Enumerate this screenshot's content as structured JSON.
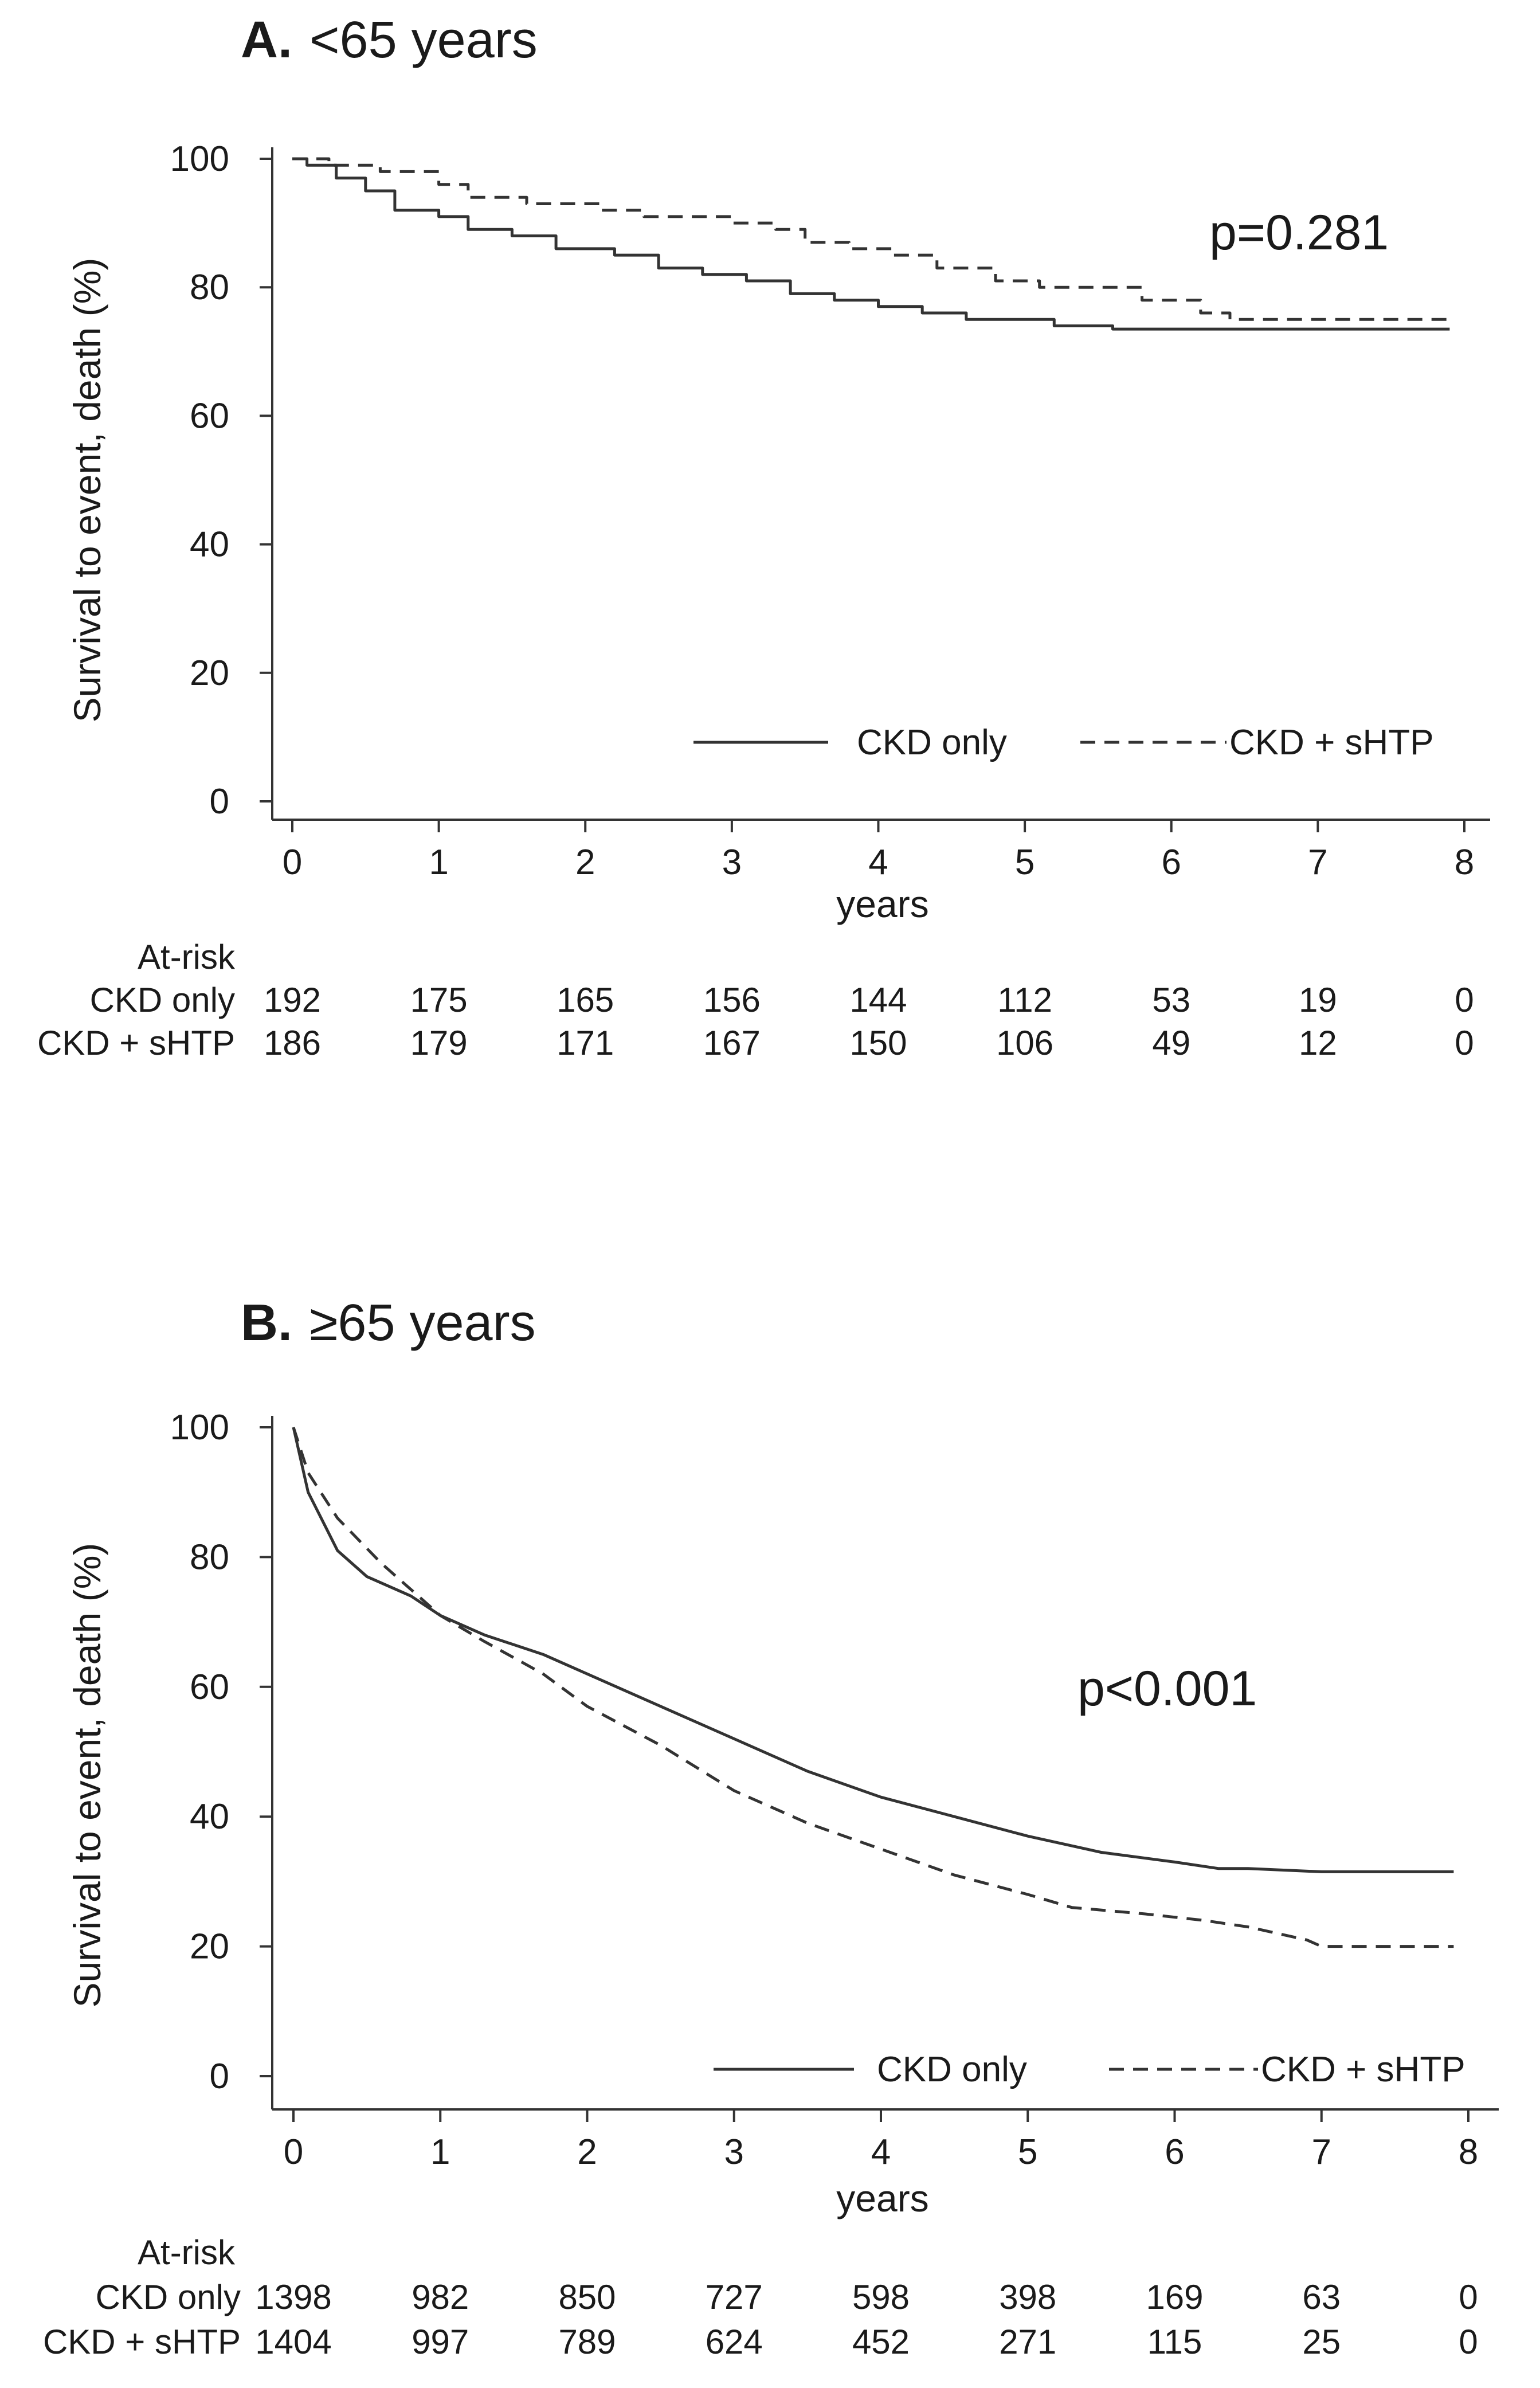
{
  "chart_data": [
    {
      "type": "line",
      "panel_letter": "A.",
      "title": "<65 years",
      "xlabel": "years",
      "ylabel": "Survival to event, death (%)",
      "xlim": [
        0,
        8
      ],
      "ylim": [
        0,
        100
      ],
      "xticks": [
        "0",
        "1",
        "2",
        "3",
        "4",
        "5",
        "6",
        "7",
        "8"
      ],
      "yticks": [
        "0",
        "20",
        "40",
        "60",
        "80",
        "100"
      ],
      "grid": false,
      "legend_position": "bottom-right",
      "annotation": "p=0.281",
      "series": [
        {
          "name": "CKD only",
          "style": "solid",
          "step": true,
          "points": [
            [
              0,
              100
            ],
            [
              0.1,
              99
            ],
            [
              0.3,
              97
            ],
            [
              0.5,
              95
            ],
            [
              0.7,
              92
            ],
            [
              1.0,
              91
            ],
            [
              1.2,
              89
            ],
            [
              1.5,
              88
            ],
            [
              1.8,
              86
            ],
            [
              2.2,
              85
            ],
            [
              2.5,
              83
            ],
            [
              2.8,
              82
            ],
            [
              3.1,
              81
            ],
            [
              3.4,
              79
            ],
            [
              3.7,
              78
            ],
            [
              4.0,
              77
            ],
            [
              4.3,
              76
            ],
            [
              4.6,
              75
            ],
            [
              5.2,
              74
            ],
            [
              5.6,
              73.5
            ],
            [
              7.9,
              73.5
            ]
          ]
        },
        {
          "name": "CKD + sHTP",
          "style": "dashed",
          "step": true,
          "points": [
            [
              0,
              100
            ],
            [
              0.25,
              99
            ],
            [
              0.6,
              98
            ],
            [
              1.0,
              96
            ],
            [
              1.2,
              94
            ],
            [
              1.6,
              93
            ],
            [
              2.1,
              92
            ],
            [
              2.4,
              91
            ],
            [
              3.0,
              90
            ],
            [
              3.3,
              89
            ],
            [
              3.5,
              87
            ],
            [
              3.8,
              86
            ],
            [
              4.1,
              85
            ],
            [
              4.4,
              83
            ],
            [
              4.8,
              81
            ],
            [
              5.1,
              80
            ],
            [
              5.8,
              78
            ],
            [
              6.2,
              76
            ],
            [
              6.4,
              75
            ],
            [
              7.9,
              75
            ]
          ]
        }
      ],
      "at_risk": {
        "header": "At-risk",
        "rows": [
          {
            "label": "CKD only",
            "values": [
              "192",
              "175",
              "165",
              "156",
              "144",
              "112",
              "53",
              "19",
              "0"
            ]
          },
          {
            "label": "CKD + sHTP",
            "values": [
              "186",
              "179",
              "171",
              "167",
              "150",
              "106",
              "49",
              "12",
              "0"
            ]
          }
        ]
      }
    },
    {
      "type": "line",
      "panel_letter": "B.",
      "title": "≥65 years",
      "xlabel": "years",
      "ylabel": "Survival to event, death (%)",
      "xlim": [
        0,
        8
      ],
      "ylim": [
        0,
        100
      ],
      "xticks": [
        "0",
        "1",
        "2",
        "3",
        "4",
        "5",
        "6",
        "7",
        "8"
      ],
      "yticks": [
        "0",
        "20",
        "40",
        "60",
        "80",
        "100"
      ],
      "grid": false,
      "legend_position": "bottom-right",
      "annotation": "p<0.001",
      "series": [
        {
          "name": "CKD only",
          "style": "solid",
          "step": false,
          "points": [
            [
              0,
              100
            ],
            [
              0.1,
              90
            ],
            [
              0.3,
              81
            ],
            [
              0.5,
              77
            ],
            [
              0.8,
              74
            ],
            [
              1.0,
              71
            ],
            [
              1.3,
              68
            ],
            [
              1.7,
              65
            ],
            [
              2.0,
              62
            ],
            [
              2.5,
              57
            ],
            [
              3.0,
              52
            ],
            [
              3.5,
              47
            ],
            [
              4.0,
              43
            ],
            [
              4.5,
              40
            ],
            [
              5.0,
              37
            ],
            [
              5.5,
              34.5
            ],
            [
              6.0,
              33
            ],
            [
              6.3,
              32
            ],
            [
              6.5,
              32
            ],
            [
              7.0,
              31.5
            ],
            [
              7.9,
              31.5
            ]
          ]
        },
        {
          "name": "CKD + sHTP",
          "style": "dashed",
          "step": false,
          "points": [
            [
              0,
              100
            ],
            [
              0.1,
              93
            ],
            [
              0.3,
              86
            ],
            [
              0.6,
              79
            ],
            [
              0.9,
              73
            ],
            [
              1.0,
              71
            ],
            [
              1.3,
              67
            ],
            [
              1.7,
              62
            ],
            [
              2.0,
              57
            ],
            [
              2.5,
              51
            ],
            [
              3.0,
              44
            ],
            [
              3.5,
              39
            ],
            [
              4.0,
              35
            ],
            [
              4.5,
              31
            ],
            [
              5.0,
              28
            ],
            [
              5.3,
              26
            ],
            [
              5.8,
              25
            ],
            [
              6.2,
              24
            ],
            [
              6.5,
              23
            ],
            [
              6.9,
              21
            ],
            [
              7.0,
              20
            ],
            [
              7.9,
              20
            ]
          ]
        }
      ],
      "at_risk": {
        "header": "At-risk",
        "rows": [
          {
            "label": "CKD only",
            "values": [
              "1398",
              "982",
              "850",
              "727",
              "598",
              "398",
              "169",
              "63",
              "0"
            ]
          },
          {
            "label": "CKD + sHTP",
            "values": [
              "1404",
              "997",
              "789",
              "624",
              "452",
              "271",
              "115",
              "25",
              "0"
            ]
          }
        ]
      }
    }
  ]
}
